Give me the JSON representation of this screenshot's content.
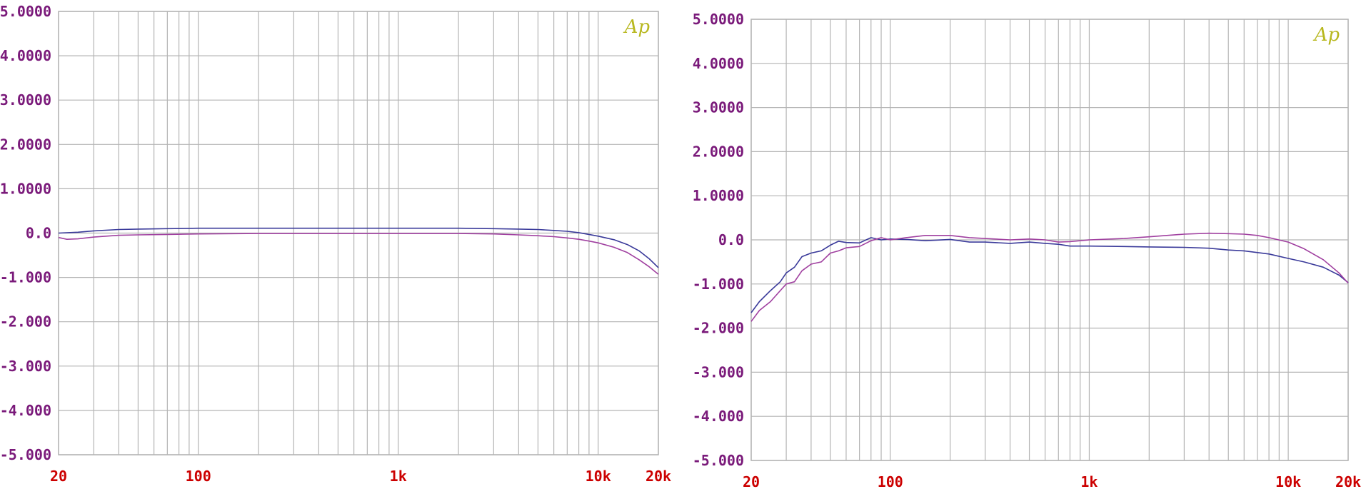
{
  "colors": {
    "grid": "#b4b4b4",
    "ytick": "#7a1a7a",
    "xtick": "#cc0000",
    "logo": "#b8b820",
    "trace_blue": "#3a3a9a",
    "trace_magenta": "#a040a0"
  },
  "chart_data": [
    {
      "type": "line",
      "title": "",
      "xlabel": "",
      "ylabel": "",
      "logo_text": "Ap",
      "x_scale": "log",
      "xlim": [
        20,
        20000
      ],
      "ylim": [
        -5,
        5
      ],
      "grid": true,
      "y_tick_values": [
        5,
        4,
        3,
        2,
        1,
        0,
        -1,
        -2,
        -3,
        -4,
        -5
      ],
      "y_tick_labels": [
        "5.0000",
        "4.0000",
        "3.0000",
        "2.0000",
        "1.0000",
        "0.0",
        "-1.000",
        "-2.000",
        "-3.000",
        "-4.000",
        "-5.000"
      ],
      "x_tick_values": [
        20,
        100,
        1000,
        10000,
        20000
      ],
      "x_tick_labels": [
        "20",
        "100",
        "1k",
        "10k",
        "20k"
      ],
      "series": [
        {
          "color": "#3a3a9a",
          "x": [
            20,
            25,
            30,
            40,
            50,
            70,
            100,
            200,
            500,
            1000,
            2000,
            3000,
            4000,
            5000,
            6000,
            7000,
            8000,
            9000,
            10000,
            12000,
            14000,
            16000,
            18000,
            20000
          ],
          "y": [
            0.0,
            0.02,
            0.05,
            0.08,
            0.09,
            0.1,
            0.11,
            0.11,
            0.11,
            0.11,
            0.11,
            0.1,
            0.09,
            0.08,
            0.06,
            0.04,
            0.01,
            -0.03,
            -0.07,
            -0.15,
            -0.26,
            -0.4,
            -0.58,
            -0.78
          ]
        },
        {
          "color": "#a040a0",
          "x": [
            20,
            22,
            25,
            30,
            40,
            50,
            70,
            100,
            200,
            500,
            1000,
            2000,
            3000,
            4000,
            5000,
            6000,
            7000,
            8000,
            9000,
            10000,
            12000,
            14000,
            16000,
            18000,
            20000
          ],
          "y": [
            -0.1,
            -0.14,
            -0.13,
            -0.09,
            -0.05,
            -0.04,
            -0.03,
            -0.02,
            -0.01,
            -0.01,
            -0.01,
            -0.01,
            -0.02,
            -0.04,
            -0.06,
            -0.08,
            -0.11,
            -0.14,
            -0.18,
            -0.22,
            -0.32,
            -0.44,
            -0.6,
            -0.76,
            -0.93
          ]
        }
      ]
    },
    {
      "type": "line",
      "title": "",
      "xlabel": "",
      "ylabel": "",
      "logo_text": "Ap",
      "x_scale": "log",
      "xlim": [
        20,
        20000
      ],
      "ylim": [
        -5,
        5
      ],
      "grid": true,
      "y_tick_values": [
        5,
        4,
        3,
        2,
        1,
        0,
        -1,
        -2,
        -3,
        -4,
        -5
      ],
      "y_tick_labels": [
        "5.0000",
        "4.0000",
        "3.0000",
        "2.0000",
        "1.0000",
        "0.0",
        "-1.000",
        "-2.000",
        "-3.000",
        "-4.000",
        "-5.000"
      ],
      "x_tick_values": [
        20,
        100,
        1000,
        10000,
        20000
      ],
      "x_tick_labels": [
        "20",
        "100",
        "1k",
        "10k",
        "20k"
      ],
      "series": [
        {
          "color": "#3a3a9a",
          "x": [
            20,
            22,
            25,
            28,
            30,
            33,
            36,
            40,
            45,
            50,
            55,
            60,
            70,
            80,
            90,
            100,
            120,
            150,
            200,
            250,
            300,
            400,
            500,
            600,
            700,
            800,
            1000,
            1500,
            2000,
            3000,
            4000,
            5000,
            6000,
            8000,
            10000,
            12000,
            15000,
            18000,
            20000
          ],
          "y": [
            -1.65,
            -1.4,
            -1.15,
            -0.95,
            -0.75,
            -0.62,
            -0.38,
            -0.3,
            -0.25,
            -0.12,
            -0.03,
            -0.06,
            -0.07,
            0.05,
            0.0,
            0.02,
            0.01,
            -0.02,
            0.01,
            -0.05,
            -0.05,
            -0.08,
            -0.05,
            -0.08,
            -0.1,
            -0.14,
            -0.14,
            -0.15,
            -0.16,
            -0.17,
            -0.19,
            -0.23,
            -0.25,
            -0.32,
            -0.42,
            -0.5,
            -0.62,
            -0.8,
            -0.97
          ]
        },
        {
          "color": "#a040a0",
          "x": [
            20,
            22,
            25,
            28,
            30,
            33,
            36,
            40,
            45,
            50,
            55,
            60,
            70,
            80,
            90,
            100,
            120,
            150,
            200,
            250,
            300,
            400,
            500,
            600,
            700,
            800,
            1000,
            1500,
            2000,
            3000,
            4000,
            5000,
            6000,
            7000,
            8000,
            10000,
            12000,
            15000,
            18000,
            20000
          ],
          "y": [
            -1.85,
            -1.6,
            -1.4,
            -1.15,
            -1.0,
            -0.95,
            -0.7,
            -0.55,
            -0.5,
            -0.3,
            -0.25,
            -0.18,
            -0.15,
            -0.02,
            0.05,
            0.0,
            0.05,
            0.1,
            0.1,
            0.05,
            0.03,
            0.0,
            0.02,
            0.0,
            -0.05,
            -0.04,
            0.0,
            0.03,
            0.07,
            0.13,
            0.15,
            0.14,
            0.13,
            0.1,
            0.05,
            -0.05,
            -0.2,
            -0.45,
            -0.75,
            -0.98
          ]
        }
      ]
    }
  ]
}
